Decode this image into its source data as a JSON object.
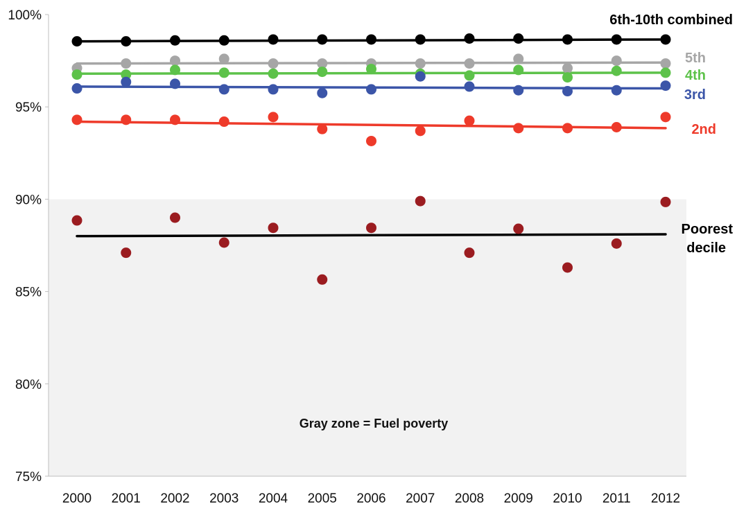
{
  "chart_data": {
    "type": "scatter",
    "title": "",
    "xlabel": "",
    "ylabel": "",
    "x": [
      2000,
      2001,
      2002,
      2003,
      2004,
      2005,
      2006,
      2007,
      2008,
      2009,
      2010,
      2011,
      2012
    ],
    "x_tick_labels": [
      "2000",
      "2001",
      "2002",
      "2003",
      "2004",
      "2005",
      "2006",
      "2007",
      "2008",
      "2009",
      "2010",
      "2011",
      "2012"
    ],
    "ylim": [
      75,
      100
    ],
    "y_ticks": [
      75,
      80,
      85,
      90,
      95,
      100
    ],
    "y_tick_labels": [
      "75%",
      "80%",
      "85%",
      "90%",
      "95%",
      "100%"
    ],
    "shaded_region": {
      "y_from": 75,
      "y_to": 90,
      "color": "#f2f2f2"
    },
    "annotation": "Gray zone = Fuel poverty",
    "series": [
      {
        "name": "6th-10th combined",
        "label_lines": [
          "6th-10th combined"
        ],
        "color": "#000000",
        "values": [
          98.55,
          98.55,
          98.6,
          98.6,
          98.65,
          98.65,
          98.65,
          98.65,
          98.7,
          98.7,
          98.65,
          98.65,
          98.65
        ],
        "trend": [
          98.55,
          98.65
        ]
      },
      {
        "name": "5th",
        "label_lines": [
          "5th"
        ],
        "color": "#a6a6a6",
        "values": [
          97.1,
          97.35,
          97.5,
          97.6,
          97.35,
          97.35,
          97.35,
          97.35,
          97.35,
          97.6,
          97.1,
          97.5,
          97.35
        ],
        "trend": [
          97.35,
          97.4
        ]
      },
      {
        "name": "4th",
        "label_lines": [
          "4th"
        ],
        "color": "#5dc24a",
        "values": [
          96.75,
          96.75,
          97.0,
          96.85,
          96.8,
          96.9,
          97.05,
          96.8,
          96.7,
          97.0,
          96.6,
          96.95,
          96.85
        ],
        "trend": [
          96.8,
          96.85
        ]
      },
      {
        "name": "3rd",
        "label_lines": [
          "3rd"
        ],
        "color": "#3b55a8",
        "values": [
          96.0,
          96.35,
          96.25,
          95.95,
          95.95,
          95.75,
          95.95,
          96.65,
          96.1,
          95.9,
          95.85,
          95.9,
          96.15
        ],
        "trend": [
          96.1,
          96.0
        ]
      },
      {
        "name": "2nd",
        "label_lines": [
          "2nd"
        ],
        "color": "#ee3a2a",
        "values": [
          94.3,
          94.3,
          94.3,
          94.2,
          94.45,
          93.8,
          93.15,
          93.7,
          94.25,
          93.85,
          93.85,
          93.9,
          94.45
        ],
        "trend": [
          94.2,
          93.85
        ]
      },
      {
        "name": "Poorest decile",
        "label_lines": [
          "Poorest",
          "decile"
        ],
        "color": "#9b1c20",
        "values": [
          88.85,
          87.1,
          89.0,
          87.65,
          88.45,
          85.65,
          88.45,
          89.9,
          87.1,
          88.4,
          86.3,
          87.6,
          89.85
        ],
        "trend": [
          88.0,
          88.1
        ],
        "trend_color": "#000000"
      }
    ]
  }
}
